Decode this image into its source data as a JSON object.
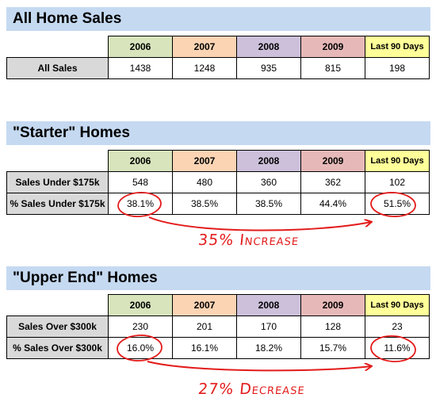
{
  "sections": [
    {
      "title": "All Home Sales",
      "headers": [
        "2006",
        "2007",
        "2008",
        "2009",
        "Last 90 Days"
      ],
      "rows": [
        {
          "label": "All Sales",
          "values": [
            "1438",
            "1248",
            "935",
            "815",
            "198"
          ]
        }
      ]
    },
    {
      "title": "\"Starter\" Homes",
      "headers": [
        "2006",
        "2007",
        "2008",
        "2009",
        "Last 90 Days"
      ],
      "rows": [
        {
          "label": "Sales Under $175k",
          "values": [
            "548",
            "480",
            "360",
            "362",
            "102"
          ]
        },
        {
          "label": "% Sales Under $175k",
          "values": [
            "38.1%",
            "38.5%",
            "38.5%",
            "44.4%",
            "51.5%"
          ]
        }
      ],
      "annotation": "35% Increase"
    },
    {
      "title": "\"Upper End\" Homes",
      "headers": [
        "2006",
        "2007",
        "2008",
        "2009",
        "Last 90 Days"
      ],
      "rows": [
        {
          "label": "Sales Over $300k",
          "values": [
            "230",
            "201",
            "170",
            "128",
            "23"
          ]
        },
        {
          "label": "% Sales Over $300k",
          "values": [
            "16.0%",
            "16.1%",
            "18.2%",
            "15.7%",
            "11.6%"
          ]
        }
      ],
      "annotation": "27% Decrease"
    }
  ],
  "colors": {
    "title_bar": "#c5d9f1",
    "col_2006": "#d7e4bc",
    "col_2007": "#fbd4b4",
    "col_2008": "#ccc0da",
    "col_2009": "#e6b9b8",
    "col_last90": "#ffff99",
    "row_label": "#d9d9d9",
    "annotation": "#e31b1b"
  }
}
